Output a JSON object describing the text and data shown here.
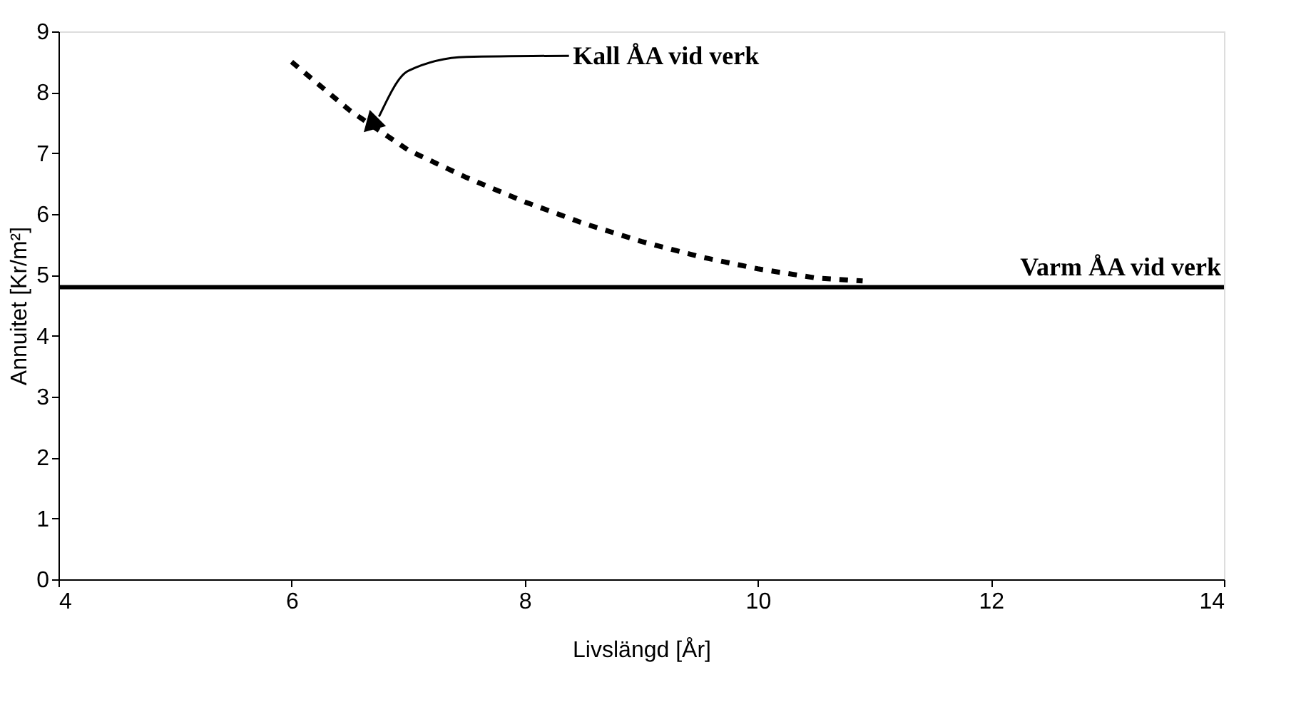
{
  "chart_data": {
    "type": "line",
    "xlabel": "Livslängd [År]",
    "ylabel": "Annuitet [Kr/m²]",
    "x": [
      6,
      6.5,
      7,
      7.5,
      8,
      8.5,
      9,
      9.5,
      10,
      10.5,
      10.9
    ],
    "series": [
      {
        "color": "#000000",
        "line_style": "dashed",
        "values": [
          8.5,
          7.7,
          7.05,
          6.6,
          6.2,
          5.85,
          5.55,
          5.3,
          5.1,
          4.95,
          4.9
        ]
      }
    ],
    "ref_lines": [
      {
        "axis": "y",
        "value": 4.8,
        "label": "Varm ÅA vid verk",
        "color": "#000000",
        "line_style": "solid"
      }
    ],
    "annotations": [
      {
        "text": "Kall ÅA vid verk",
        "x": 6.7,
        "y": 7.5
      }
    ],
    "xlim": [
      4,
      14
    ],
    "xticks": [
      4,
      6,
      8,
      10,
      12,
      14
    ],
    "ylim": [
      0,
      9
    ],
    "yticks": [
      0,
      1,
      2,
      3,
      4,
      5,
      6,
      7,
      8,
      9
    ],
    "grid": false,
    "marker": "none"
  }
}
